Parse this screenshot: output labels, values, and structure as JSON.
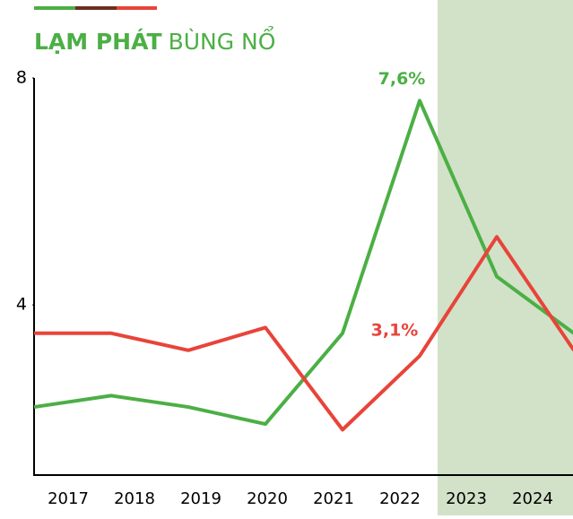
{
  "chart_data": {
    "type": "line",
    "title": {
      "bold": "LẠM PHÁT",
      "regular": "BÙNG NỔ"
    },
    "categories": [
      "2017",
      "2018",
      "2019",
      "2020",
      "2021",
      "2022",
      "2023",
      "2024"
    ],
    "series": [
      {
        "color": "#4caf45",
        "values": [
          2.2,
          2.4,
          2.2,
          1.9,
          3.5,
          7.6,
          4.5,
          3.5
        ],
        "value_labels": [
          null,
          null,
          null,
          null,
          null,
          "7,6%",
          null,
          null
        ]
      },
      {
        "color": "#e8443a",
        "values": [
          3.5,
          3.5,
          3.2,
          3.6,
          1.8,
          3.1,
          5.2,
          3.2
        ],
        "value_labels": [
          null,
          null,
          null,
          null,
          null,
          "3,1%",
          null,
          null
        ]
      }
    ],
    "ylim": [
      1,
      8
    ],
    "yticks": [
      4,
      8
    ]
  }
}
